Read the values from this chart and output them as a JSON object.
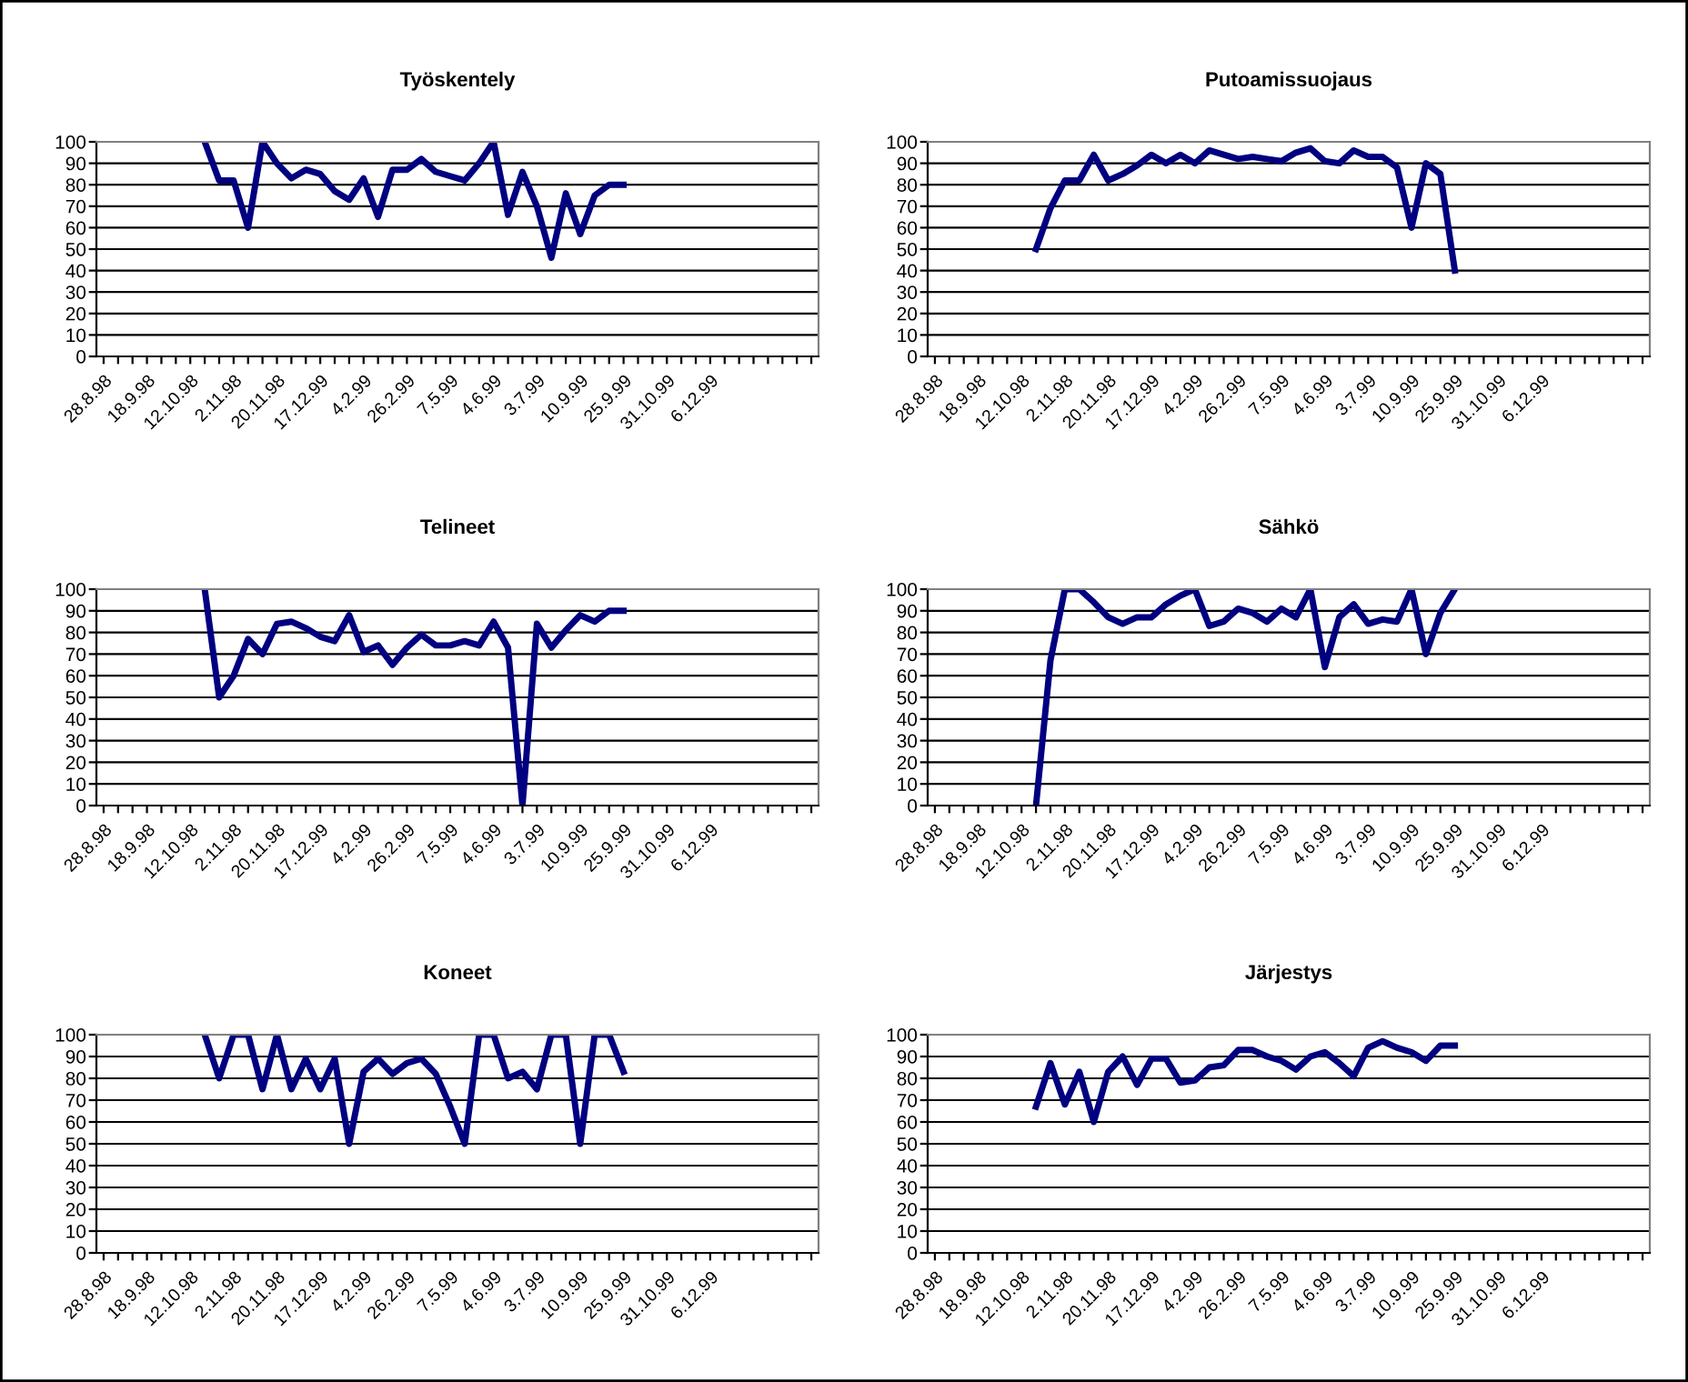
{
  "chart_data": [
    {
      "type": "line",
      "title": "Työskentely",
      "categories": [
        "28.8.98",
        null,
        null,
        "18.9.98",
        null,
        null,
        "12.10.98",
        null,
        null,
        "2.11.98",
        null,
        null,
        "20.11.98",
        null,
        null,
        "17.12.99",
        null,
        null,
        "4.2.99",
        null,
        null,
        "26.2.99",
        null,
        null,
        "7.5.99",
        null,
        null,
        "4.6.99",
        null,
        null,
        "3.7.99",
        null,
        null,
        "10.9.99",
        null,
        null,
        "25.9.99",
        null,
        null,
        "31.10.99",
        null,
        null,
        "6.12.99",
        null,
        null,
        null,
        null,
        null,
        null,
        null
      ],
      "series": [
        {
          "color": "#000080",
          "values": [
            null,
            null,
            null,
            null,
            null,
            null,
            null,
            100,
            82,
            82,
            60,
            100,
            90,
            83,
            87,
            85,
            77,
            73,
            83,
            65,
            87,
            87,
            92,
            86,
            84,
            82,
            90,
            100,
            66,
            86,
            70,
            46,
            76,
            57,
            75,
            80,
            80,
            null,
            null,
            null,
            null,
            null,
            null,
            null,
            null,
            null,
            null,
            null,
            null,
            null
          ]
        }
      ],
      "ylim": [
        0,
        100
      ],
      "yticks": [
        0,
        10,
        20,
        30,
        40,
        50,
        60,
        70,
        80,
        90,
        100
      ],
      "grid": "y"
    },
    {
      "type": "line",
      "title": "Putoamissuojaus",
      "categories": [
        "28.8.98",
        null,
        null,
        "18.9.98",
        null,
        null,
        "12.10.98",
        null,
        null,
        "2.11.98",
        null,
        null,
        "20.11.98",
        null,
        null,
        "17.12.99",
        null,
        null,
        "4.2.99",
        null,
        null,
        "26.2.99",
        null,
        null,
        "7.5.99",
        null,
        null,
        "4.6.99",
        null,
        null,
        "3.7.99",
        null,
        null,
        "10.9.99",
        null,
        null,
        "25.9.99",
        null,
        null,
        "31.10.99",
        null,
        null,
        "6.12.99",
        null,
        null,
        null,
        null,
        null,
        null,
        null
      ],
      "series": [
        {
          "color": "#000080",
          "values": [
            null,
            null,
            null,
            null,
            null,
            null,
            null,
            50,
            69,
            82,
            82,
            94,
            82,
            85,
            89,
            94,
            90,
            94,
            90,
            96,
            94,
            92,
            93,
            92,
            91,
            95,
            97,
            91,
            90,
            96,
            93,
            93,
            88,
            60,
            90,
            85,
            40,
            null,
            null,
            null,
            null,
            null,
            null,
            null,
            null,
            null,
            null,
            null,
            null,
            null
          ]
        }
      ],
      "ylim": [
        0,
        100
      ],
      "yticks": [
        0,
        10,
        20,
        30,
        40,
        50,
        60,
        70,
        80,
        90,
        100
      ],
      "grid": "y"
    },
    {
      "type": "line",
      "title": "Telineet",
      "categories": [
        "28.8.98",
        null,
        null,
        "18.9.98",
        null,
        null,
        "12.10.98",
        null,
        null,
        "2.11.98",
        null,
        null,
        "20.11.98",
        null,
        null,
        "17.12.99",
        null,
        null,
        "4.2.99",
        null,
        null,
        "26.2.99",
        null,
        null,
        "7.5.99",
        null,
        null,
        "4.6.99",
        null,
        null,
        "3.7.99",
        null,
        null,
        "10.9.99",
        null,
        null,
        "25.9.99",
        null,
        null,
        "31.10.99",
        null,
        null,
        "6.12.99",
        null,
        null,
        null,
        null,
        null,
        null,
        null
      ],
      "series": [
        {
          "color": "#000080",
          "values": [
            null,
            null,
            null,
            null,
            null,
            null,
            null,
            100,
            50,
            60,
            77,
            70,
            84,
            85,
            82,
            78,
            76,
            88,
            71,
            74,
            65,
            73,
            79,
            74,
            74,
            76,
            74,
            85,
            73,
            0,
            84,
            73,
            81,
            88,
            85,
            90,
            90,
            null,
            null,
            null,
            null,
            null,
            null,
            null,
            null,
            null,
            null,
            null,
            null,
            null
          ]
        }
      ],
      "ylim": [
        0,
        100
      ],
      "yticks": [
        0,
        10,
        20,
        30,
        40,
        50,
        60,
        70,
        80,
        90,
        100
      ],
      "grid": "y"
    },
    {
      "type": "line",
      "title": "Sähkö",
      "categories": [
        "28.8.98",
        null,
        null,
        "18.9.98",
        null,
        null,
        "12.10.98",
        null,
        null,
        "2.11.98",
        null,
        null,
        "20.11.98",
        null,
        null,
        "17.12.99",
        null,
        null,
        "4.2.99",
        null,
        null,
        "26.2.99",
        null,
        null,
        "7.5.99",
        null,
        null,
        "4.6.99",
        null,
        null,
        "3.7.99",
        null,
        null,
        "10.9.99",
        null,
        null,
        "25.9.99",
        null,
        null,
        "31.10.99",
        null,
        null,
        "6.12.99",
        null,
        null,
        null,
        null,
        null,
        null,
        null
      ],
      "series": [
        {
          "color": "#000080",
          "values": [
            null,
            null,
            null,
            null,
            null,
            null,
            null,
            0,
            67,
            100,
            100,
            94,
            87,
            84,
            87,
            87,
            93,
            97,
            100,
            83,
            85,
            91,
            89,
            85,
            91,
            87,
            100,
            64,
            87,
            93,
            84,
            86,
            85,
            100,
            70,
            89,
            100,
            null,
            null,
            null,
            null,
            null,
            null,
            null,
            null,
            null,
            null,
            null,
            null,
            null
          ]
        }
      ],
      "ylim": [
        0,
        100
      ],
      "yticks": [
        0,
        10,
        20,
        30,
        40,
        50,
        60,
        70,
        80,
        90,
        100
      ],
      "grid": "y"
    },
    {
      "type": "line",
      "title": "Koneet",
      "categories": [
        "28.8.98",
        null,
        null,
        "18.9.98",
        null,
        null,
        "12.10.98",
        null,
        null,
        "2.11.98",
        null,
        null,
        "20.11.98",
        null,
        null,
        "17.12.99",
        null,
        null,
        "4.2.99",
        null,
        null,
        "26.2.99",
        null,
        null,
        "7.5.99",
        null,
        null,
        "4.6.99",
        null,
        null,
        "3.7.99",
        null,
        null,
        "10.9.99",
        null,
        null,
        "25.9.99",
        null,
        null,
        "31.10.99",
        null,
        null,
        "6.12.99",
        null,
        null,
        null,
        null,
        null,
        null,
        null
      ],
      "series": [
        {
          "color": "#000080",
          "values": [
            null,
            null,
            null,
            null,
            null,
            null,
            null,
            100,
            80,
            100,
            100,
            75,
            100,
            75,
            89,
            75,
            89,
            50,
            83,
            89,
            82,
            87,
            89,
            82,
            67,
            50,
            100,
            100,
            80,
            83,
            75,
            100,
            100,
            50,
            100,
            100,
            83,
            null,
            null,
            null,
            null,
            null,
            null,
            null,
            null,
            null,
            null,
            null,
            null,
            null
          ]
        }
      ],
      "ylim": [
        0,
        100
      ],
      "yticks": [
        0,
        10,
        20,
        30,
        40,
        50,
        60,
        70,
        80,
        90,
        100
      ],
      "grid": "y"
    },
    {
      "type": "line",
      "title": "Järjestys",
      "categories": [
        "28.8.98",
        null,
        null,
        "18.9.98",
        null,
        null,
        "12.10.98",
        null,
        null,
        "2.11.98",
        null,
        null,
        "20.11.98",
        null,
        null,
        "17.12.99",
        null,
        null,
        "4.2.99",
        null,
        null,
        "26.2.99",
        null,
        null,
        "7.5.99",
        null,
        null,
        "4.6.99",
        null,
        null,
        "3.7.99",
        null,
        null,
        "10.9.99",
        null,
        null,
        "25.9.99",
        null,
        null,
        "31.10.99",
        null,
        null,
        "6.12.99",
        null,
        null,
        null,
        null,
        null,
        null,
        null
      ],
      "series": [
        {
          "color": "#000080",
          "values": [
            null,
            null,
            null,
            null,
            null,
            null,
            null,
            67,
            87,
            68,
            83,
            60,
            83,
            90,
            77,
            89,
            89,
            78,
            79,
            85,
            86,
            93,
            93,
            90,
            88,
            84,
            90,
            92,
            87,
            81,
            94,
            97,
            94,
            92,
            88,
            95,
            95,
            null,
            null,
            null,
            null,
            null,
            null,
            null,
            null,
            null,
            null,
            null,
            null,
            null
          ]
        }
      ],
      "ylim": [
        0,
        100
      ],
      "yticks": [
        0,
        10,
        20,
        30,
        40,
        50,
        60,
        70,
        80,
        90,
        100
      ],
      "grid": "y"
    }
  ]
}
